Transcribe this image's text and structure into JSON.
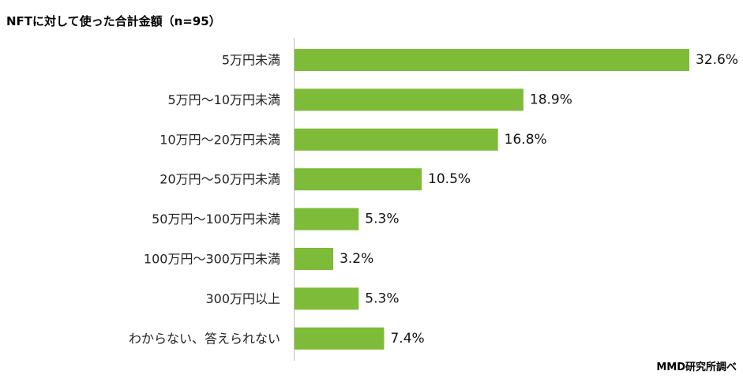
{
  "title": "NFTに対して使った合計金額（n=95）",
  "source": "MMD研究所調べ",
  "colors": {
    "bar": "#7dbb38",
    "axis": "#bfbfbf"
  },
  "chart_data": {
    "type": "bar",
    "orientation": "horizontal",
    "title": "NFTに対して使った合計金額（n=95）",
    "categories": [
      "5万円未満",
      "5万円～10万円未満",
      "10万円～20万円未満",
      "20万円～50万円未満",
      "50万円～100万円未満",
      "100万円～300万円未満",
      "300万円以上",
      "わからない、答えられない"
    ],
    "values": [
      32.6,
      18.9,
      16.8,
      10.5,
      5.3,
      3.2,
      5.3,
      7.4
    ],
    "value_labels": [
      "32.6%",
      "18.9%",
      "16.8%",
      "10.5%",
      "5.3%",
      "3.2%",
      "5.3%",
      "7.4%"
    ],
    "unit": "%",
    "xlim": [
      0,
      32.6
    ],
    "grid": false,
    "legend": "none"
  }
}
